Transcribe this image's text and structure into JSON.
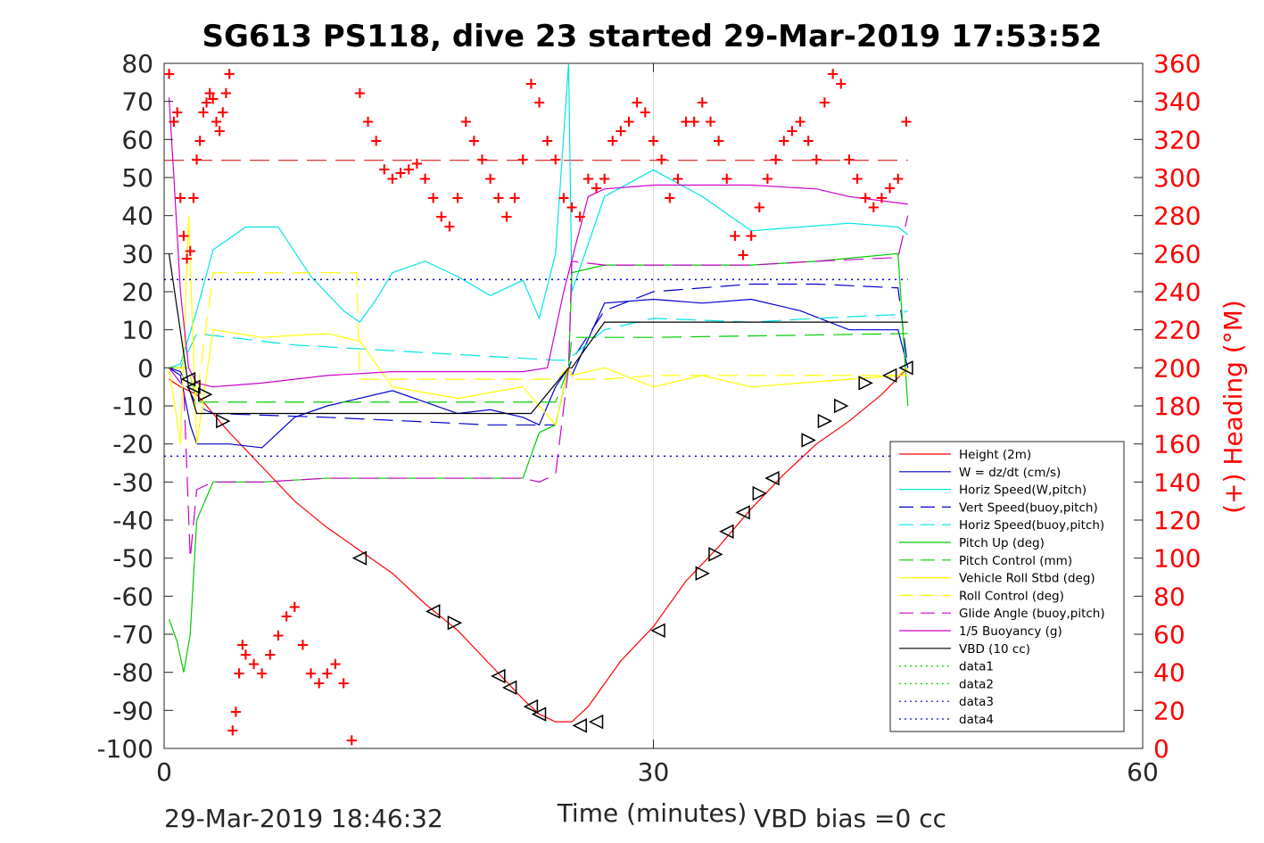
{
  "chart_data": {
    "type": "line",
    "title": "SG613 PS118, dive 23 started 29-Mar-2019 17:53:52",
    "xlabel": "Time (minutes)",
    "ylabel_right": "(+) Heading (°M)",
    "xlim": [
      0,
      60
    ],
    "ylim": [
      -100,
      80
    ],
    "ylim_right": [
      0,
      360
    ],
    "x_ticks": [
      "0",
      "30",
      "60"
    ],
    "y_ticks": [
      "80",
      "70",
      "60",
      "50",
      "40",
      "30",
      "20",
      "10",
      "0",
      "-10",
      "-20",
      "-30",
      "-40",
      "-50",
      "-60",
      "-70",
      "-80",
      "-90",
      "-100"
    ],
    "y_ticks_right": [
      "360",
      "340",
      "320",
      "300",
      "280",
      "260",
      "240",
      "220",
      "200",
      "180",
      "160",
      "140",
      "120",
      "100",
      "80",
      "60",
      "40",
      "20",
      "0"
    ],
    "grid": "x-only",
    "legend_position": "lower-right",
    "footer_left": "29-Mar-2019 18:46:32",
    "footer_right": "VBD bias =0 cc",
    "series": [
      {
        "name": "Height (2m)",
        "color": "#ff0000",
        "style": "solid",
        "x": [
          0.3,
          1,
          2,
          3,
          4,
          6,
          8,
          10,
          12,
          14,
          16,
          18,
          20,
          22,
          23,
          24,
          25,
          26,
          27,
          28,
          30,
          32,
          34,
          36,
          38,
          40,
          42,
          44,
          45.6
        ],
        "y": [
          -3,
          -5,
          -7,
          -12,
          -17,
          -26,
          -35,
          -42,
          -48,
          -54,
          -62,
          -69,
          -78,
          -87,
          -91,
          -93,
          -93,
          -89,
          -83,
          -77,
          -68,
          -56,
          -47,
          -37,
          -28,
          -20,
          -14,
          -7,
          0
        ]
      },
      {
        "name": "W = dz/dt (cm/s)",
        "color": "#0000cc",
        "style": "solid",
        "x": [
          0.3,
          1,
          1.6,
          2,
          4,
          6,
          8,
          10,
          12,
          14,
          16,
          18,
          20,
          22,
          23,
          24,
          24.8,
          25,
          27,
          30,
          33,
          36,
          39,
          42,
          45,
          45.6
        ],
        "y": [
          0,
          -2,
          -15,
          -20,
          -20,
          -21,
          -13,
          -10,
          -8,
          -6,
          -9,
          -12,
          -11,
          -13,
          -15,
          -5,
          0,
          -2,
          17,
          18,
          17,
          18,
          15,
          10,
          10,
          0
        ]
      },
      {
        "name": "Horiz Speed(W,pitch)",
        "color": "#00e5e5",
        "style": "solid",
        "x": [
          0.3,
          1,
          2,
          3,
          5,
          7,
          9,
          11,
          12,
          13,
          14,
          16,
          18,
          20,
          22,
          23,
          24,
          24.8,
          25,
          27,
          30,
          33,
          36,
          39,
          42,
          45,
          45.6
        ],
        "y": [
          0,
          1,
          15,
          31,
          37,
          37,
          24,
          15,
          12,
          18,
          25,
          28,
          24,
          19,
          23,
          13,
          30,
          80,
          20,
          45,
          52,
          45,
          36,
          37,
          38,
          37,
          35
        ]
      },
      {
        "name": "Vert Speed(buoy,pitch)",
        "color": "#0000cc",
        "style": "dashed",
        "x": [
          0.3,
          1,
          2,
          3,
          10,
          20,
          24,
          24.8,
          25,
          27,
          30,
          36,
          40,
          45,
          45.6
        ],
        "y": [
          0,
          -1,
          -10,
          -12,
          -13,
          -15,
          -15,
          0,
          2,
          15,
          20,
          22,
          22,
          21,
          0
        ]
      },
      {
        "name": "Horiz Speed(buoy,pitch)",
        "color": "#00e5e5",
        "style": "dashed",
        "x": [
          0.3,
          1,
          2,
          4,
          8,
          12,
          16,
          20,
          24,
          24.8,
          25,
          27,
          30,
          36,
          40,
          45,
          45.6
        ],
        "y": [
          0,
          0,
          9,
          8,
          6,
          5,
          4,
          3,
          2,
          2,
          3,
          10,
          13,
          12,
          13,
          14,
          15
        ]
      },
      {
        "name": "Pitch Up (deg)",
        "color": "#00cc00",
        "style": "solid",
        "x": [
          0.3,
          0.8,
          1.2,
          1.6,
          2,
          3,
          6,
          10,
          14,
          18,
          22,
          23,
          24,
          24.8,
          25,
          27,
          30,
          36,
          40,
          45,
          45.6
        ],
        "y": [
          -66,
          -72,
          -80,
          -70,
          -40,
          -30,
          -30,
          -29,
          -29,
          -29,
          -29,
          -17,
          -15,
          0,
          25,
          27,
          27,
          27,
          28,
          30,
          -10
        ]
      },
      {
        "name": "Pitch Control (mm)",
        "color": "#00cc00",
        "style": "dashed",
        "x": [
          0.3,
          1.5,
          2,
          24,
          24.8,
          25,
          30,
          45.6
        ],
        "y": [
          0,
          0,
          -9,
          -9,
          0,
          8,
          8,
          9
        ]
      },
      {
        "name": "Vehicle Roll Stbd (deg)",
        "color": "#ffff00",
        "style": "solid",
        "x": [
          0.3,
          1,
          1.5,
          2,
          3,
          6,
          10,
          12,
          14,
          18,
          22,
          23,
          24,
          24.8,
          25,
          27,
          30,
          33,
          36,
          39,
          42,
          45,
          45.6
        ],
        "y": [
          0,
          -20,
          40,
          -20,
          10,
          8,
          9,
          7,
          -5,
          -8,
          -5,
          -10,
          -15,
          0,
          -2,
          0,
          -5,
          -2,
          -5,
          -4,
          -3,
          -2,
          0
        ]
      },
      {
        "name": "Roll Control (deg)",
        "color": "#ffff00",
        "style": "dashed",
        "x": [
          0.3,
          1.5,
          2,
          3,
          11.8,
          12,
          24,
          24.8,
          25,
          27,
          30,
          45.6
        ],
        "y": [
          0,
          0,
          -8,
          25,
          25,
          -3,
          -3,
          0,
          -3,
          -3,
          -2,
          -2
        ]
      },
      {
        "name": "Glide Angle (buoy,pitch)",
        "color": "#cc00cc",
        "style": "dashed",
        "x": [
          0.3,
          1.2,
          1.6,
          2,
          3,
          6,
          10,
          14,
          18,
          22,
          23,
          24,
          24.8,
          25,
          27,
          30,
          36,
          40,
          45,
          45.6
        ],
        "y": [
          0,
          -5,
          -50,
          -32,
          -30,
          -30,
          -29,
          -29,
          -29,
          -29,
          -30,
          -28,
          0,
          28,
          27,
          27,
          27,
          28,
          29,
          40
        ]
      },
      {
        "name": "1/5 Buoyancy (g)",
        "color": "#cc00cc",
        "style": "solid",
        "x": [
          0.3,
          0.6,
          1,
          1.5,
          2,
          3,
          6,
          10,
          14,
          18,
          22,
          23.5,
          24.5,
          26,
          27,
          30,
          36,
          40,
          42,
          45.6
        ],
        "y": [
          71,
          50,
          20,
          0,
          -4,
          -5,
          -4,
          -2,
          -1,
          -1,
          -1,
          0,
          20,
          45,
          47,
          48,
          48,
          47,
          45,
          43
        ]
      },
      {
        "name": "VBD (10 cc)",
        "color": "#000000",
        "style": "solid",
        "x": [
          0.3,
          1.5,
          2,
          3,
          10,
          15,
          21,
          21.4,
          22.5,
          24.8,
          25,
          27,
          30,
          45.6
        ],
        "y": [
          30,
          -5,
          -12,
          -12,
          -12,
          -12,
          -12,
          -12,
          -12,
          0,
          0,
          12,
          12,
          12
        ]
      },
      {
        "name": "data1",
        "color": "#00cc00",
        "style": "dotted",
        "x": [],
        "y": []
      },
      {
        "name": "data2",
        "color": "#00cc00",
        "style": "dotted",
        "x": [],
        "y": []
      },
      {
        "name": "data3",
        "color": "#0000cc",
        "style": "dotted",
        "x": [
          0,
          45.6
        ],
        "y": [
          23.2,
          23.2
        ]
      },
      {
        "name": "data4",
        "color": "#0000cc",
        "style": "dotted",
        "x": [
          0,
          45.6
        ],
        "y": [
          -23.2,
          -23.2
        ]
      }
    ],
    "reference_lines": [
      {
        "color": "#cc0000",
        "style": "dashed",
        "x": [
          0,
          45.6
        ],
        "y": [
          54.5,
          54.5
        ]
      }
    ],
    "heading_points": {
      "color": "#ff0000",
      "axis": "right",
      "x": [
        0.3,
        0.6,
        0.8,
        1.0,
        1.2,
        1.4,
        1.6,
        1.8,
        2.0,
        2.2,
        2.4,
        2.6,
        2.8,
        3.0,
        3.2,
        3.4,
        3.6,
        3.8,
        4.0,
        4.2,
        4.4,
        4.6,
        4.8,
        5.0,
        5.5,
        6.0,
        6.5,
        7.0,
        7.5,
        8.0,
        8.5,
        9.0,
        9.5,
        10.0,
        10.5,
        11.0,
        11.5,
        12.0,
        12.5,
        13.0,
        13.5,
        14.0,
        14.5,
        15.0,
        15.5,
        16.0,
        16.5,
        17.0,
        17.5,
        18.0,
        18.5,
        19.0,
        19.5,
        20.0,
        20.5,
        21.0,
        21.5,
        22.0,
        22.5,
        23.0,
        23.5,
        24.0,
        24.5,
        25.0,
        25.5,
        26.0,
        26.5,
        27.0,
        27.5,
        28.0,
        28.5,
        29.0,
        29.5,
        30.0,
        30.5,
        31.0,
        31.5,
        32.0,
        32.5,
        33.0,
        33.5,
        34.0,
        34.5,
        35.0,
        35.5,
        36.0,
        36.5,
        37.0,
        37.5,
        38.0,
        38.5,
        39.0,
        39.5,
        40.0,
        40.5,
        41.0,
        41.5,
        42.0,
        42.5,
        43.0,
        43.5,
        44.0,
        44.5,
        45.0,
        45.5
      ],
      "y": [
        355,
        330,
        335,
        290,
        270,
        258,
        262,
        290,
        310,
        320,
        335,
        340,
        345,
        342,
        330,
        325,
        335,
        345,
        355,
        10,
        20,
        40,
        55,
        50,
        45,
        40,
        50,
        60,
        70,
        75,
        55,
        40,
        35,
        40,
        45,
        35,
        5,
        345,
        330,
        320,
        305,
        300,
        303,
        305,
        308,
        300,
        290,
        280,
        275,
        290,
        330,
        320,
        310,
        300,
        290,
        280,
        290,
        310,
        350,
        340,
        320,
        310,
        290,
        285,
        280,
        300,
        295,
        300,
        320,
        325,
        330,
        340,
        335,
        320,
        310,
        290,
        300,
        330,
        330,
        340,
        330,
        320,
        300,
        270,
        260,
        270,
        285,
        300,
        310,
        320,
        325,
        330,
        320,
        310,
        340,
        355,
        350,
        310,
        300,
        290,
        285,
        290,
        295,
        300,
        330
      ]
    },
    "markers": {
      "shape": "triangle",
      "x": [
        1.5,
        1.8,
        2.5,
        3.6,
        12.0,
        16.5,
        17.8,
        20.5,
        21.2,
        22.5,
        23.0,
        25.5,
        26.5,
        30.3,
        33.0,
        33.8,
        34.5,
        35.5,
        36.5,
        37.3,
        39.5,
        40.5,
        41.5,
        43.0,
        44.5,
        45.5
      ],
      "y": [
        -3,
        -5,
        -7,
        -14,
        -50,
        -64,
        -67,
        -81,
        -84,
        -89,
        -91,
        -94,
        -93,
        -69,
        -54,
        -49,
        -43,
        -38,
        -33,
        -29,
        -19,
        -14,
        -10,
        -4,
        -2,
        0
      ],
      "direction": [
        "left",
        "left",
        "right",
        "right",
        "left",
        "left",
        "right",
        "left",
        "left",
        "left",
        "left",
        "left",
        "left",
        "left",
        "right",
        "right",
        "left",
        "left",
        "right",
        "left",
        "right",
        "right",
        "right",
        "right",
        "left",
        "left"
      ]
    }
  }
}
